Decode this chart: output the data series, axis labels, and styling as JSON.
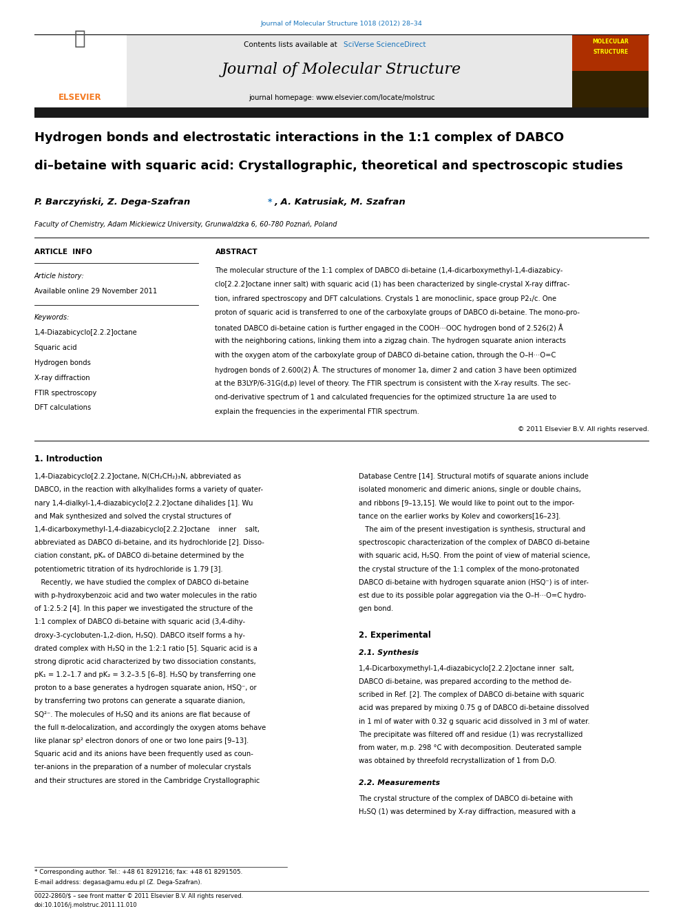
{
  "journal_ref": "Journal of Molecular Structure 1018 (2012) 28–34",
  "journal_name": "Journal of Molecular Structure",
  "contents_text": "Contents lists available at SciVerse ScienceDirect",
  "homepage_text": "journal homepage: www.elsevier.com/locate/molstruc",
  "title_line1": "Hydrogen bonds and electrostatic interactions in the 1:1 complex of DABCO",
  "title_line2": "di–betaine with squaric acid: Crystallographic, theoretical and spectroscopic studies",
  "authors_part1": "P. Barczyński, Z. Dega-Szafran",
  "authors_star": "*",
  "authors_part2": ", A. Katrusiak, M. Szafran",
  "affiliation": "Faculty of Chemistry, Adam Mickiewicz University, Grunwaldzka 6, 60-780 Poznań, Poland",
  "article_info_header": "ARTICLE  INFO",
  "abstract_header": "ABSTRACT",
  "article_history_label": "Article history:",
  "article_history_value": "Available online 29 November 2011",
  "keywords_label": "Keywords:",
  "keywords": [
    "1,4-Diazabicyclo[2.2.2]octane",
    "Squaric acid",
    "Hydrogen bonds",
    "X-ray diffraction",
    "FTIR spectroscopy",
    "DFT calculations"
  ],
  "abstract_lines": [
    "The molecular structure of the 1:1 complex of DABCO di-betaine (1,4-dicarboxymethyl-1,4-diazabicy-",
    "clo[2.2.2]octane inner salt) with squaric acid (1) has been characterized by single-crystal X-ray diffrac-",
    "tion, infrared spectroscopy and DFT calculations. Crystals 1 are monoclinic, space group P2₁/c. One",
    "proton of squaric acid is transferred to one of the carboxylate groups of DABCO di-betaine. The mono-pro-",
    "tonated DABCO di-betaine cation is further engaged in the COOH···OOC hydrogen bond of 2.526(2) Å",
    "with the neighboring cations, linking them into a zigzag chain. The hydrogen squarate anion interacts",
    "with the oxygen atom of the carboxylate group of DABCO di-betaine cation, through the O–H···O=C",
    "hydrogen bonds of 2.600(2) Å. The structures of monomer 1a, dimer 2 and cation 3 have been optimized",
    "at the B3LYP/6-31G(d,p) level of theory. The FTIR spectrum is consistent with the X-ray results. The sec-",
    "ond-derivative spectrum of 1 and calculated frequencies for the optimized structure 1a are used to",
    "explain the frequencies in the experimental FTIR spectrum."
  ],
  "copyright_text": "© 2011 Elsevier B.V. All rights reserved.",
  "intro_header": "1. Introduction",
  "intro_col1_lines": [
    "1,4-Diazabicyclo[2.2.2]octane, N(CH₂CH₂)₃N, abbreviated as",
    "DABCO, in the reaction with alkylhalides forms a variety of quater-",
    "nary 1,4-dialkyl-1,4-diazabicyclo[2.2.2]octane dihalides [1]. Wu",
    "and Mak synthesized and solved the crystal structures of",
    "1,4-dicarboxymethyl-1,4-diazabicyclo[2.2.2]octane    inner    salt,",
    "abbreviated as DABCO di-betaine, and its hydrochloride [2]. Disso-",
    "ciation constant, pKₐ of DABCO di-betaine determined by the",
    "potentiometric titration of its hydrochloride is 1.79 [3].",
    "   Recently, we have studied the complex of DABCO di-betaine",
    "with p-hydroxybenzoic acid and two water molecules in the ratio",
    "of 1:2.5:2 [4]. In this paper we investigated the structure of the",
    "1:1 complex of DABCO di-betaine with squaric acid (3,4-dihy-",
    "droxy-3-cyclobuten-1,2-dion, H₂SQ). DABCO itself forms a hy-",
    "drated complex with H₂SQ in the 1:2:1 ratio [5]. Squaric acid is a",
    "strong diprotic acid characterized by two dissociation constants,",
    "pK₁ = 1.2–1.7 and pK₂ = 3.2–3.5 [6–8]. H₂SQ by transferring one",
    "proton to a base generates a hydrogen squarate anion, HSQ⁻, or",
    "by transferring two protons can generate a squarate dianion,",
    "SQ²⁻. The molecules of H₂SQ and its anions are flat because of",
    "the full π-delocalization, and accordingly the oxygen atoms behave",
    "like planar sp² electron donors of one or two lone pairs [9–13].",
    "Squaric acid and its anions have been frequently used as coun-",
    "ter-anions in the preparation of a number of molecular crystals",
    "and their structures are stored in the Cambridge Crystallographic"
  ],
  "intro_col2_lines": [
    "Database Centre [14]. Structural motifs of squarate anions include",
    "isolated monomeric and dimeric anions, single or double chains,",
    "and ribbons [9–13,15]. We would like to point out to the impor-",
    "tance on the earlier works by Kolev and coworkers[16–23].",
    "   The aim of the present investigation is synthesis, structural and",
    "spectroscopic characterization of the complex of DABCO di-betaine",
    "with squaric acid, H₂SQ. From the point of view of material science,",
    "the crystal structure of the 1:1 complex of the mono-protonated",
    "DABCO di-betaine with hydrogen squarate anion (HSQ⁻) is of inter-",
    "est due to its possible polar aggregation via the O–H···O=C hydro-",
    "gen bond."
  ],
  "section2_header": "2. Experimental",
  "section21_header": "2.1. Synthesis",
  "section21_lines": [
    "1,4-Dicarboxymethyl-1,4-diazabicyclo[2.2.2]octane inner  salt,",
    "DABCO di-betaine, was prepared according to the method de-",
    "scribed in Ref. [2]. The complex of DABCO di-betaine with squaric",
    "acid was prepared by mixing 0.75 g of DABCO di-betaine dissolved",
    "in 1 ml of water with 0.32 g squaric acid dissolved in 3 ml of water.",
    "The precipitate was filtered off and residue (1) was recrystallized",
    "from water, m.p. 298 °C with decomposition. Deuterated sample",
    "was obtained by threefold recrystallization of 1 from D₂O."
  ],
  "section22_header": "2.2. Measurements",
  "section22_lines": [
    "The crystal structure of the complex of DABCO di-betaine with",
    "H₂SQ (1) was determined by X-ray diffraction, measured with a"
  ],
  "footnote_star": "* Corresponding author. Tel.: +48 61 8291216; fax: +48 61 8291505.",
  "footnote_email": "E-mail address: degasa@amu.edu.pl (Z. Dega-Szafran).",
  "footer_issn": "0022-2860/$ – see front matter © 2011 Elsevier B.V. All rights reserved.",
  "footer_doi": "doi:10.1016/j.molstruc.2011.11.010",
  "bg_color": "#ffffff",
  "header_bar_color": "#1a1a1a",
  "elsevier_orange": "#f47920",
  "sciverse_blue": "#1a75bc",
  "journal_ref_color": "#1a75bc",
  "header_bg": "#e8e8e8",
  "cover_colors": [
    "#8B0000",
    "#ff6600",
    "#006400"
  ],
  "cover_text_line1": "MOLECULAR",
  "cover_text_line2": "STRUCTURE"
}
